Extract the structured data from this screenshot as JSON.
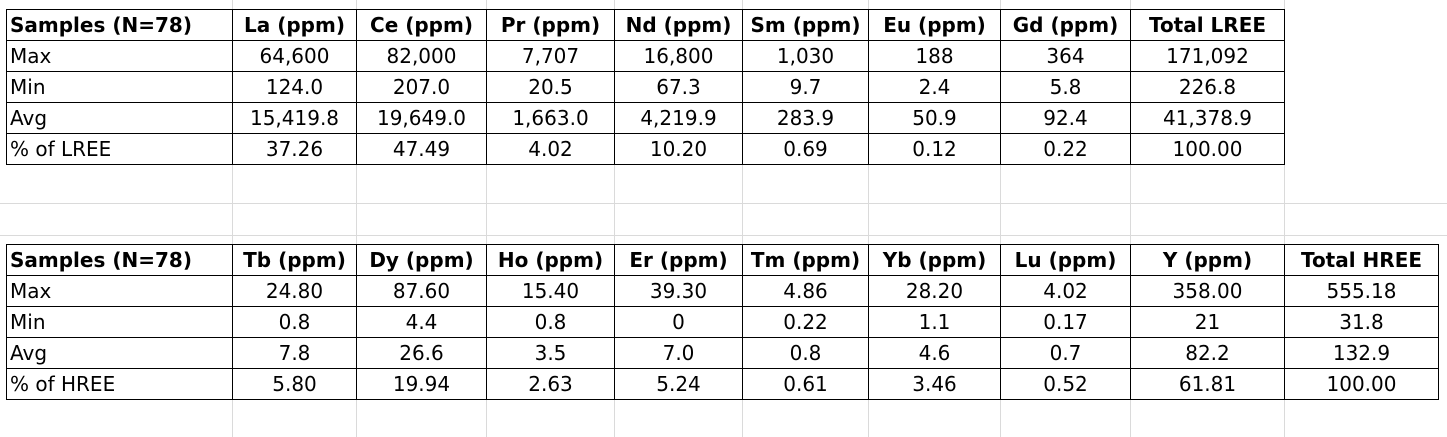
{
  "lree_table": {
    "header": [
      "Samples (N=78)",
      "La (ppm)",
      "Ce (ppm)",
      "Pr (ppm)",
      "Nd (ppm)",
      "Sm (ppm)",
      "Eu (ppm)",
      "Gd (ppm)",
      "Total LREE"
    ],
    "rows": [
      [
        "Max",
        "64,600",
        "82,000",
        "7,707",
        "16,800",
        "1,030",
        "188",
        "364",
        "171,092"
      ],
      [
        "Min",
        "124.0",
        "207.0",
        "20.5",
        "67.3",
        "9.7",
        "2.4",
        "5.8",
        "226.8"
      ],
      [
        "Avg",
        "15,419.8",
        "19,649.0",
        "1,663.0",
        "4,219.9",
        "283.9",
        "50.9",
        "92.4",
        "41,378.9"
      ],
      [
        "% of LREE",
        "37.26",
        "47.49",
        "4.02",
        "10.20",
        "0.69",
        "0.12",
        "0.22",
        "100.00"
      ]
    ]
  },
  "hree_table": {
    "header": [
      "Samples (N=78)",
      "Tb (ppm)",
      "Dy (ppm)",
      "Ho (ppm)",
      "Er (ppm)",
      "Tm (ppm)",
      "Yb (ppm)",
      "Lu (ppm)",
      "Y (ppm)",
      "Total HREE"
    ],
    "rows": [
      [
        "Max",
        "24.80",
        "87.60",
        "15.40",
        "39.30",
        "4.86",
        "28.20",
        "4.02",
        "358.00",
        "555.18"
      ],
      [
        "Min",
        "0.8",
        "4.4",
        "0.8",
        "0",
        "0.22",
        "1.1",
        "0.17",
        "21",
        "31.8"
      ],
      [
        "Avg",
        "7.8",
        "26.6",
        "3.5",
        "7.0",
        "0.8",
        "4.6",
        "0.7",
        "82.2",
        "132.9"
      ],
      [
        "% of HREE",
        "5.80",
        "19.94",
        "2.63",
        "5.24",
        "0.61",
        "3.46",
        "0.52",
        "61.81",
        "100.00"
      ]
    ]
  }
}
